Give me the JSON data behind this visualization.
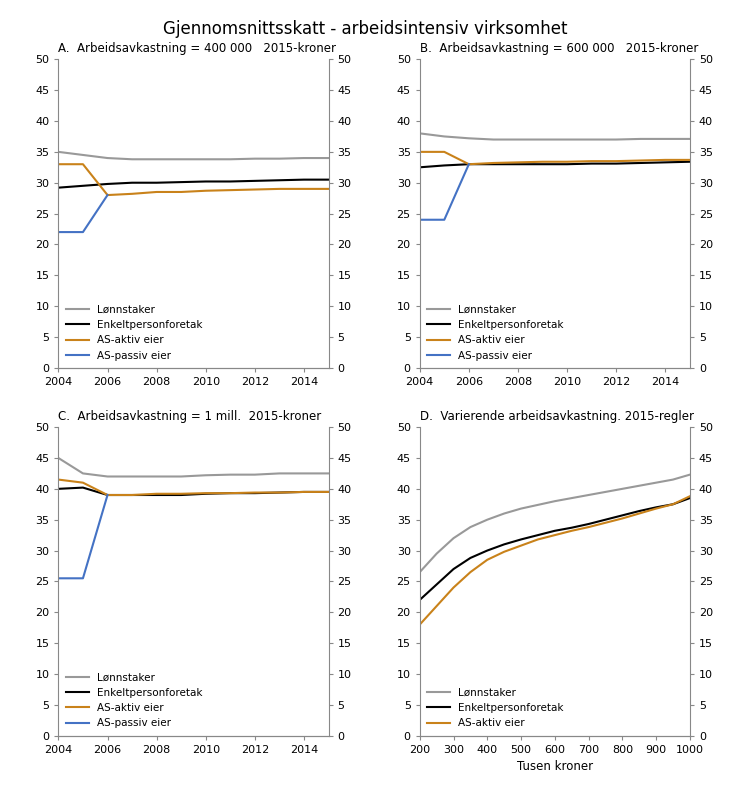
{
  "title": "Gjennomsnittsskatt - arbeidsintensiv virksomhet",
  "years": [
    2004,
    2005,
    2006,
    2007,
    2008,
    2009,
    2010,
    2011,
    2012,
    2013,
    2014,
    2015
  ],
  "panels": {
    "A": {
      "title": "A.  Arbeidsavkastning = 400 000   2015-kroner",
      "lonnstaker": [
        35.0,
        34.5,
        34.0,
        33.8,
        33.8,
        33.8,
        33.8,
        33.8,
        33.9,
        33.9,
        34.0,
        34.0
      ],
      "enkeltpersonforetak": [
        29.2,
        29.5,
        29.8,
        30.0,
        30.0,
        30.1,
        30.2,
        30.2,
        30.3,
        30.4,
        30.5,
        30.5
      ],
      "as_aktiv": [
        33.0,
        33.0,
        28.0,
        28.2,
        28.5,
        28.5,
        28.7,
        28.8,
        28.9,
        29.0,
        29.0,
        29.0
      ],
      "as_passiv": [
        22.0,
        22.0,
        28.0,
        null,
        null,
        null,
        null,
        null,
        null,
        null,
        null,
        null
      ]
    },
    "B": {
      "title": "B.  Arbeidsavkastning = 600 000   2015-kroner",
      "lonnstaker": [
        38.0,
        37.5,
        37.2,
        37.0,
        37.0,
        37.0,
        37.0,
        37.0,
        37.0,
        37.1,
        37.1,
        37.1
      ],
      "enkeltpersonforetak": [
        32.5,
        32.8,
        33.0,
        33.0,
        33.0,
        33.0,
        33.0,
        33.1,
        33.1,
        33.2,
        33.3,
        33.4
      ],
      "as_aktiv": [
        35.0,
        35.0,
        33.0,
        33.2,
        33.3,
        33.4,
        33.4,
        33.5,
        33.5,
        33.6,
        33.7,
        33.7
      ],
      "as_passiv": [
        24.0,
        24.0,
        33.0,
        null,
        null,
        null,
        null,
        null,
        null,
        null,
        null,
        null
      ]
    },
    "C": {
      "title": "C.  Arbeidsavkastning = 1 mill.  2015-kroner",
      "lonnstaker": [
        45.0,
        42.5,
        42.0,
        42.0,
        42.0,
        42.0,
        42.2,
        42.3,
        42.3,
        42.5,
        42.5,
        42.5
      ],
      "enkeltpersonforetak": [
        40.0,
        40.2,
        39.0,
        39.0,
        39.0,
        39.0,
        39.2,
        39.3,
        39.3,
        39.4,
        39.5,
        39.5
      ],
      "as_aktiv": [
        41.5,
        41.0,
        39.0,
        39.0,
        39.2,
        39.2,
        39.3,
        39.3,
        39.4,
        39.4,
        39.5,
        39.5
      ],
      "as_passiv": [
        25.5,
        25.5,
        39.0,
        null,
        null,
        null,
        null,
        null,
        null,
        null,
        null,
        null
      ]
    },
    "D": {
      "title": "D.  Varierende arbeidsavkastning. 2015-regler",
      "xlabel": "Tusen kroner",
      "x": [
        200,
        250,
        300,
        350,
        400,
        450,
        500,
        550,
        600,
        650,
        700,
        750,
        800,
        850,
        900,
        950,
        1000
      ],
      "lonnstaker": [
        26.5,
        29.5,
        32.0,
        33.8,
        35.0,
        36.0,
        36.8,
        37.4,
        38.0,
        38.5,
        39.0,
        39.5,
        40.0,
        40.5,
        41.0,
        41.5,
        42.3
      ],
      "enkeltpersonforetak": [
        22.0,
        24.5,
        27.0,
        28.8,
        30.0,
        31.0,
        31.8,
        32.5,
        33.2,
        33.7,
        34.3,
        35.0,
        35.7,
        36.4,
        37.0,
        37.5,
        38.5
      ],
      "as_aktiv": [
        18.0,
        21.0,
        24.0,
        26.5,
        28.5,
        29.8,
        30.8,
        31.8,
        32.5,
        33.2,
        33.8,
        34.5,
        35.2,
        36.0,
        36.8,
        37.5,
        38.8
      ]
    }
  },
  "colors": {
    "lonnstaker": "#999999",
    "enkeltpersonforetak": "#000000",
    "as_aktiv": "#c9821a",
    "as_passiv": "#4472c4"
  },
  "ylim": [
    0,
    50
  ],
  "yticks": [
    0,
    5,
    10,
    15,
    20,
    25,
    30,
    35,
    40,
    45,
    50
  ],
  "legend_labels": {
    "lonnstaker": "Lønnstaker",
    "enkeltpersonforetak": "Enkeltpersonforetak",
    "as_aktiv": "AS-aktiv eier",
    "as_passiv": "AS-passiv eier"
  }
}
